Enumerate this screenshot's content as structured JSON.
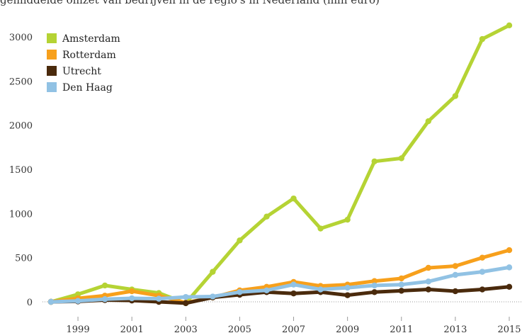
{
  "header": {
    "title_fragment": "gemiddelde omzet van bedrijven in de regio's in Nederland (mln euro)"
  },
  "chart_data": {
    "type": "line",
    "title": "",
    "xlabel": "",
    "ylabel": "",
    "x": [
      1998,
      1999,
      2000,
      2001,
      2002,
      2003,
      2004,
      2005,
      2006,
      2007,
      2008,
      2009,
      2010,
      2011,
      2012,
      2013,
      2014,
      2015
    ],
    "x_tick_labels": [
      "1999",
      "2001",
      "2003",
      "2005",
      "2007",
      "2009",
      "2011",
      "2013",
      "2015"
    ],
    "y_ticks": [
      0,
      500,
      1000,
      1500,
      2000,
      2500,
      3000
    ],
    "ylim": [
      -200,
      3300
    ],
    "grid": false,
    "zero_line": "dotted",
    "legend": "top-left",
    "series": [
      {
        "name": "Amsterdam",
        "color": "#b5d334",
        "values": [
          0,
          85,
          185,
          140,
          100,
          -15,
          340,
          695,
          965,
          1170,
          830,
          930,
          1590,
          1625,
          2045,
          2330,
          2975,
          3130
        ]
      },
      {
        "name": "Rotterdam",
        "color": "#f7a01c",
        "values": [
          0,
          40,
          70,
          120,
          70,
          -10,
          50,
          130,
          170,
          225,
          180,
          195,
          235,
          265,
          385,
          405,
          500,
          585
        ]
      },
      {
        "name": "Utrecht",
        "color": "#4a2a0c",
        "values": [
          0,
          5,
          20,
          15,
          0,
          -15,
          50,
          80,
          110,
          95,
          110,
          75,
          110,
          125,
          140,
          120,
          140,
          170
        ]
      },
      {
        "name": "Den Haag",
        "color": "#91c2e4",
        "values": [
          0,
          10,
          30,
          40,
          35,
          55,
          60,
          110,
          130,
          195,
          140,
          160,
          185,
          195,
          230,
          305,
          340,
          390
        ]
      }
    ]
  }
}
